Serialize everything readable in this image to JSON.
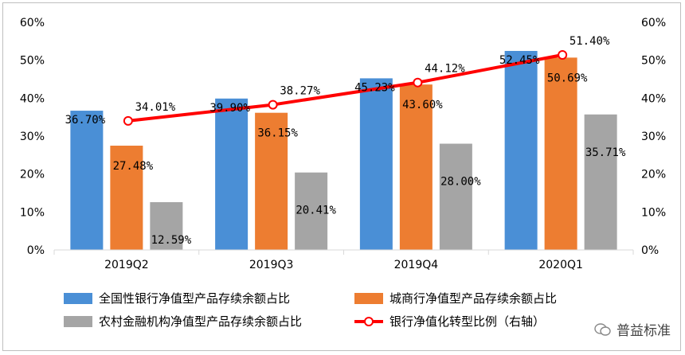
{
  "chart_data": {
    "type": "bar",
    "categories": [
      "2019Q2",
      "2019Q3",
      "2019Q4",
      "2020Q1"
    ],
    "series": [
      {
        "name": "全国性银行净值型产品存续余额占比",
        "type": "bar",
        "axis": "left",
        "values": [
          36.7,
          39.9,
          45.23,
          52.45
        ],
        "labels": [
          "36.70%",
          "39.90%",
          "45.23%",
          "52.45%"
        ],
        "color": "#4a8fd6"
      },
      {
        "name": "城商行净值型产品存续余额占比",
        "type": "bar",
        "axis": "left",
        "values": [
          27.48,
          36.15,
          43.6,
          50.69
        ],
        "labels": [
          "27.48%",
          "36.15%",
          "43.60%",
          "50.69%"
        ],
        "color": "#ed7d31"
      },
      {
        "name": "农村金融机构净值型产品存续余额占比",
        "type": "bar",
        "axis": "left",
        "values": [
          12.59,
          20.41,
          28.0,
          35.71
        ],
        "labels": [
          "12.59%",
          "20.41%",
          "28.00%",
          "35.71%"
        ],
        "color": "#a5a5a5"
      },
      {
        "name": "银行净值化转型比例（右轴）",
        "type": "line",
        "axis": "right",
        "values": [
          34.01,
          38.27,
          44.12,
          51.4
        ],
        "labels": [
          "34.01%",
          "38.27%",
          "44.12%",
          "51.40%"
        ],
        "color": "#ff0000"
      }
    ],
    "ylim": [
      0,
      60
    ],
    "y2lim": [
      0,
      60
    ],
    "yticks": [
      "0%",
      "10%",
      "20%",
      "30%",
      "40%",
      "50%",
      "60%"
    ],
    "y2ticks": [
      "0%",
      "10%",
      "20%",
      "30%",
      "40%",
      "50%",
      "60%"
    ],
    "grid": false,
    "legend_position": "bottom"
  },
  "watermark": "普益标准"
}
